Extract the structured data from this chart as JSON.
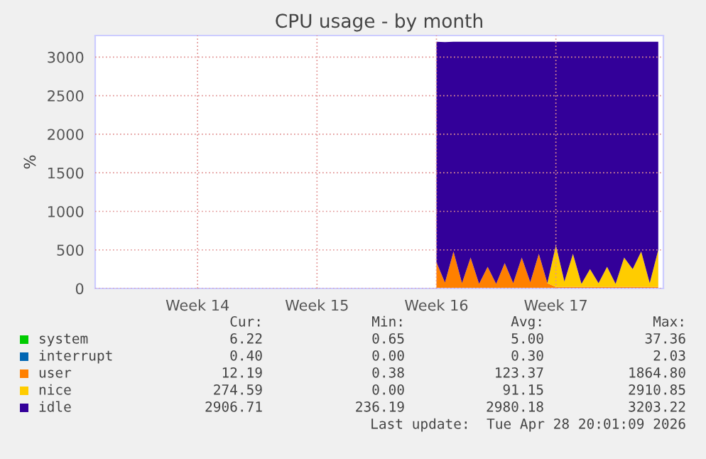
{
  "chart_data": {
    "type": "area",
    "stacked": true,
    "title": "CPU usage - by month",
    "ylabel": "%",
    "categories": [
      null,
      null,
      null,
      null,
      null,
      null,
      null,
      null,
      null,
      null,
      null,
      null,
      "Week 14",
      null,
      null,
      null,
      null,
      null,
      null,
      null,
      null,
      null,
      null,
      null,
      null,
      null,
      "Week 15",
      null,
      null,
      null,
      null,
      null,
      null,
      null,
      null,
      null,
      null,
      null,
      null,
      null,
      "Week 16",
      null,
      null,
      null,
      null,
      null,
      null,
      null,
      null,
      null,
      null,
      null,
      null,
      null,
      "Week 17",
      null,
      null,
      null,
      null,
      null,
      null,
      null,
      null,
      null,
      null,
      null,
      null
    ],
    "series": [
      {
        "name": "system",
        "color": "#00cc00",
        "values": [
          null,
          null,
          null,
          null,
          null,
          null,
          null,
          null,
          null,
          null,
          null,
          null,
          null,
          null,
          null,
          null,
          null,
          null,
          null,
          null,
          null,
          null,
          null,
          null,
          null,
          null,
          null,
          null,
          null,
          null,
          null,
          null,
          null,
          null,
          null,
          null,
          null,
          null,
          null,
          null,
          null,
          null,
          null,
          null,
          null,
          null,
          null,
          null,
          null,
          null,
          null,
          null,
          null,
          null,
          null,
          null,
          null,
          null,
          null,
          null,
          null,
          null,
          null,
          null,
          null,
          null,
          null
        ]
      },
      {
        "name": "interrupt",
        "color": "#0066b3",
        "values": [
          null,
          null,
          null,
          null,
          null,
          null,
          null,
          null,
          null,
          null,
          null,
          null,
          null,
          null,
          null,
          null,
          null,
          null,
          null,
          null,
          null,
          null,
          null,
          null,
          null,
          null,
          null,
          null,
          null,
          null,
          null,
          null,
          null,
          null,
          null,
          null,
          null,
          null,
          null,
          null,
          null,
          null,
          null,
          null,
          null,
          null,
          null,
          null,
          null,
          null,
          null,
          null,
          null,
          null,
          null,
          null,
          null,
          null,
          null,
          null,
          null,
          null,
          null,
          null,
          null,
          null,
          null
        ]
      },
      {
        "name": "user",
        "color": "#ff8000",
        "values": [
          null,
          null,
          null,
          null,
          null,
          null,
          null,
          null,
          null,
          null,
          null,
          null,
          null,
          null,
          null,
          null,
          null,
          null,
          null,
          null,
          null,
          null,
          null,
          null,
          null,
          null,
          null,
          null,
          null,
          null,
          null,
          null,
          null,
          null,
          null,
          null,
          null,
          null,
          null,
          null,
          340,
          75,
          480,
          70,
          400,
          60,
          280,
          60,
          330,
          70,
          400,
          80,
          450,
          70,
          20,
          20,
          20,
          20,
          20,
          20,
          20,
          20,
          20,
          20,
          20,
          20,
          20
        ]
      },
      {
        "name": "nice",
        "color": "#ffcc00",
        "values": [
          null,
          null,
          null,
          null,
          null,
          null,
          null,
          null,
          null,
          null,
          null,
          null,
          null,
          null,
          null,
          null,
          null,
          null,
          null,
          null,
          null,
          null,
          null,
          null,
          null,
          null,
          null,
          null,
          null,
          null,
          null,
          null,
          null,
          null,
          null,
          null,
          null,
          null,
          null,
          null,
          0,
          0,
          0,
          0,
          0,
          0,
          0,
          0,
          0,
          0,
          0,
          0,
          0,
          0,
          540,
          70,
          430,
          40,
          230,
          50,
          260,
          40,
          380,
          230,
          460,
          50,
          480
        ]
      },
      {
        "name": "idle",
        "color": "#330099",
        "values": [
          null,
          null,
          null,
          null,
          null,
          null,
          null,
          null,
          null,
          null,
          null,
          null,
          null,
          null,
          null,
          null,
          null,
          null,
          null,
          null,
          null,
          null,
          null,
          null,
          null,
          null,
          null,
          null,
          null,
          null,
          null,
          null,
          null,
          null,
          null,
          null,
          null,
          null,
          null,
          null,
          2860,
          3120,
          2720,
          3130,
          2800,
          3140,
          2920,
          3140,
          2870,
          3130,
          2800,
          3120,
          2750,
          3130,
          2640,
          3110,
          2750,
          3140,
          2950,
          3130,
          2920,
          3140,
          2800,
          2950,
          2720,
          3130,
          2700
        ]
      }
    ],
    "ylim": [
      0,
      3280
    ],
    "yticks": [
      0,
      500,
      1000,
      1500,
      2000,
      2500,
      3000
    ],
    "grid": true,
    "legend": "bottom",
    "annotations": [
      "Cur:",
      "Min:",
      "Avg:",
      "Max:",
      "6.22",
      "0.65",
      "5.00",
      "37.36",
      "0.40",
      "0.00",
      "0.30",
      "2.03",
      "12.19",
      "0.38",
      "123.37",
      "1864.80",
      "274.59",
      "0.00",
      "91.15",
      "2910.85",
      "2906.71",
      "236.19",
      "2980.18",
      "3203.22",
      "Last update:  Tue Apr 28 20:01:09 2026"
    ]
  }
}
